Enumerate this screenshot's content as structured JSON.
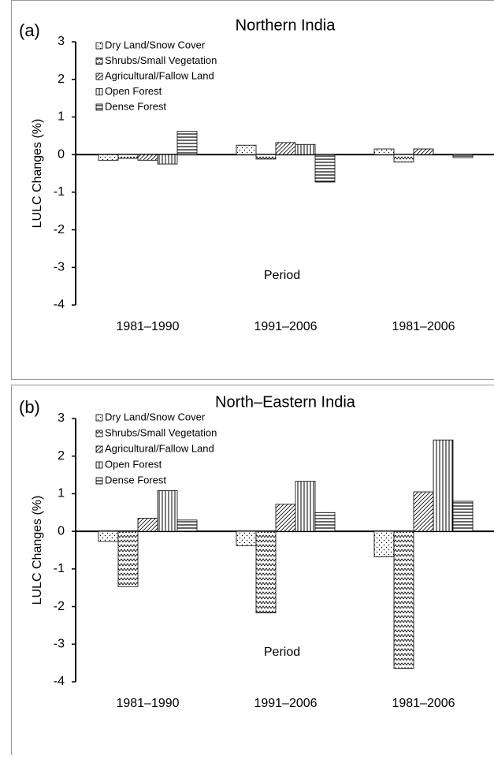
{
  "chart_data": [
    {
      "type": "bar",
      "panel_label": "(a)",
      "title": "Northern India",
      "y_label": "LULC Changes (%)",
      "x_label": "Period",
      "categories": [
        "1981–1990",
        "1991–2006",
        "1981–2006"
      ],
      "series": [
        {
          "name": "Dry Land/Snow Cover",
          "pattern": "dots",
          "color": "#000000",
          "values": [
            -0.15,
            0.25,
            0.15
          ]
        },
        {
          "name": "Shrubs/Small Vegetation",
          "pattern": "zigzag",
          "color": "#000000",
          "values": [
            -0.1,
            -0.12,
            -0.2
          ]
        },
        {
          "name": "Agricultural/Fallow Land",
          "pattern": "diagonal",
          "color": "#000000",
          "values": [
            -0.15,
            0.32,
            0.15
          ]
        },
        {
          "name": "Open Forest",
          "pattern": "vertical",
          "color": "#000000",
          "values": [
            -0.25,
            0.27,
            0
          ]
        },
        {
          "name": "Dense Forest",
          "pattern": "horizontal",
          "color": "#000000",
          "values": [
            0.62,
            -0.73,
            -0.08
          ]
        }
      ],
      "ylim": [
        -4,
        3
      ],
      "yticks": [
        -4,
        -3,
        -2,
        -1,
        0,
        1,
        2,
        3
      ]
    },
    {
      "type": "bar",
      "panel_label": "(b)",
      "title": "North–Eastern India",
      "y_label": "LULC Changes (%)",
      "x_label": "Period",
      "categories": [
        "1981–1990",
        "1991–2006",
        "1981–2006"
      ],
      "series": [
        {
          "name": "Dry Land/Snow Cover",
          "pattern": "dots",
          "color": "#000000",
          "values": [
            -0.27,
            -0.38,
            -0.68
          ]
        },
        {
          "name": "Shrubs/Small Vegetation",
          "pattern": "zigzag",
          "color": "#000000",
          "values": [
            -1.47,
            -2.17,
            -3.65
          ]
        },
        {
          "name": "Agricultural/Fallow Land",
          "pattern": "diagonal",
          "color": "#000000",
          "values": [
            0.35,
            0.72,
            1.05
          ]
        },
        {
          "name": "Open Forest",
          "pattern": "vertical",
          "color": "#000000",
          "values": [
            1.08,
            1.33,
            2.43
          ]
        },
        {
          "name": "Dense Forest",
          "pattern": "horizontal",
          "color": "#000000",
          "values": [
            0.3,
            0.5,
            0.8
          ]
        }
      ],
      "ylim": [
        -4,
        3
      ],
      "yticks": [
        -4,
        -3,
        -2,
        -1,
        0,
        1,
        2,
        3
      ]
    }
  ]
}
